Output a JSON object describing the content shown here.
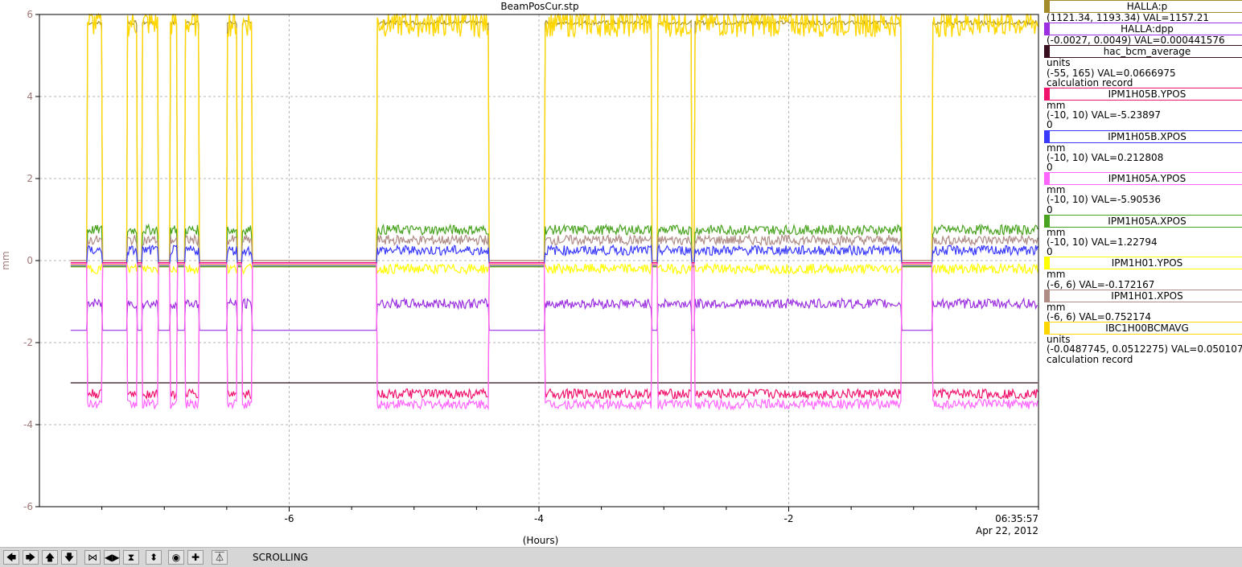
{
  "chart_data": {
    "type": "line",
    "title": "BeamPosCur.stp",
    "xlabel": "(Hours)",
    "ylabel": "mm",
    "x_range": [
      -8,
      0
    ],
    "ylim": [
      -6,
      6
    ],
    "y_ticks": [
      "-6",
      "-4",
      "-2",
      "0",
      "2",
      "4",
      "6"
    ],
    "x_ticks": [
      {
        "x": -6,
        "label": "-6"
      },
      {
        "x": -4,
        "label": "-4"
      },
      {
        "x": -2,
        "label": "-2"
      }
    ],
    "end_time": "06:35:57",
    "end_date": "Apr 22, 2012",
    "grid": true,
    "beam_on_intervals": [
      [
        -7.62,
        -7.5
      ],
      [
        -7.3,
        -7.22
      ],
      [
        -7.18,
        -7.05
      ],
      [
        -6.95,
        -6.9
      ],
      [
        -6.83,
        -6.72
      ],
      [
        -6.5,
        -6.42
      ],
      [
        -6.38,
        -6.3
      ],
      [
        -5.3,
        -4.4
      ],
      [
        -3.95,
        -3.1
      ],
      [
        -3.05,
        -2.78
      ],
      [
        -2.75,
        -1.1
      ],
      [
        -0.85,
        0
      ]
    ],
    "series": [
      {
        "name": "HALLA:p",
        "color": "#a38a2a",
        "on": 5.8,
        "off": 0.0
      },
      {
        "name": "IBC1H00BCMAVG",
        "color": "#ffd700",
        "on": 5.8,
        "off": -0.15
      },
      {
        "name": "IPM1H05A.XPOS",
        "color": "#49a320",
        "on": 0.75,
        "off": -0.15
      },
      {
        "name": "IPM1H01.XPOS",
        "color": "#b08c86",
        "on": 0.5,
        "off": 0.0
      },
      {
        "name": "IPM1H05B.XPOS",
        "color": "#3a3aff",
        "on": 0.25,
        "off": -0.12
      },
      {
        "name": "IPM1H01.YPOS",
        "color": "#ffff00",
        "on": -0.2,
        "off": -0.1
      },
      {
        "name": "HALLA:dpp",
        "color": "#9b30e0",
        "on": -1.05,
        "off": -1.7
      },
      {
        "name": "hac_bcm_average",
        "color": "#2a0a14",
        "on": -2.98,
        "off": -2.98
      },
      {
        "name": "IPM1H05B.YPOS",
        "color": "#f0146e",
        "on": -3.25,
        "off": -0.05
      },
      {
        "name": "IPM1H05A.YPOS",
        "color": "#ff66ff",
        "on": -3.5,
        "off": -0.08
      }
    ]
  },
  "legend": [
    {
      "name": "HALLA:p",
      "color": "#a38a2a",
      "lines": [
        "(1121.34, 1193.34) VAL=1157.21"
      ]
    },
    {
      "name": "HALLA:dpp",
      "color": "#9b30e0",
      "lines": [
        "(-0.0027, 0.0049) VAL=0.000441576"
      ]
    },
    {
      "name": "hac_bcm_average",
      "color": "#3a1020",
      "lines": [
        "units",
        "(-55, 165) VAL=0.0666975",
        "calculation record"
      ]
    },
    {
      "name": "IPM1H05B.YPOS",
      "color": "#f0146e",
      "lines": [
        "mm",
        "(-10, 10) VAL=-5.23897",
        "0"
      ]
    },
    {
      "name": "IPM1H05B.XPOS",
      "color": "#3a3aff",
      "lines": [
        "mm",
        "(-10, 10) VAL=0.212808",
        "0"
      ]
    },
    {
      "name": "IPM1H05A.YPOS",
      "color": "#ff66ff",
      "lines": [
        "mm",
        "(-10, 10) VAL=-5.90536",
        "0"
      ]
    },
    {
      "name": "IPM1H05A.XPOS",
      "color": "#49a320",
      "lines": [
        "mm",
        "(-10, 10) VAL=1.22794",
        "0"
      ]
    },
    {
      "name": "IPM1H01.YPOS",
      "color": "#ffff00",
      "lines": [
        "mm",
        "(-6, 6) VAL=-0.172167"
      ]
    },
    {
      "name": "IPM1H01.XPOS",
      "color": "#b08c86",
      "lines": [
        "mm",
        "(-6, 6) VAL=0.752174"
      ]
    },
    {
      "name": "IBC1H00BCMAVG",
      "color": "#ffd700",
      "lines": [
        "units",
        "(-0.0487745, 0.0512275) VAL=0.0501072",
        "calculation record"
      ]
    }
  ],
  "toolbar": {
    "buttons": [
      {
        "name": "scroll-left",
        "glyph": "🡄"
      },
      {
        "name": "scroll-right",
        "glyph": "🡆"
      },
      {
        "name": "scroll-up",
        "glyph": "🡅"
      },
      {
        "name": "scroll-down",
        "glyph": "🡇"
      },
      {
        "name": "zoom-in-x",
        "glyph": "⋈"
      },
      {
        "name": "zoom-out-x",
        "glyph": "◀▶"
      },
      {
        "name": "zoom-in-y",
        "glyph": "⧗"
      },
      {
        "name": "zoom-out-y",
        "glyph": "⬍"
      },
      {
        "name": "reset",
        "glyph": "◉"
      },
      {
        "name": "add",
        "glyph": "✚"
      },
      {
        "name": "toggle-style",
        "glyph": "⏄"
      }
    ],
    "status": "SCROLLING"
  }
}
